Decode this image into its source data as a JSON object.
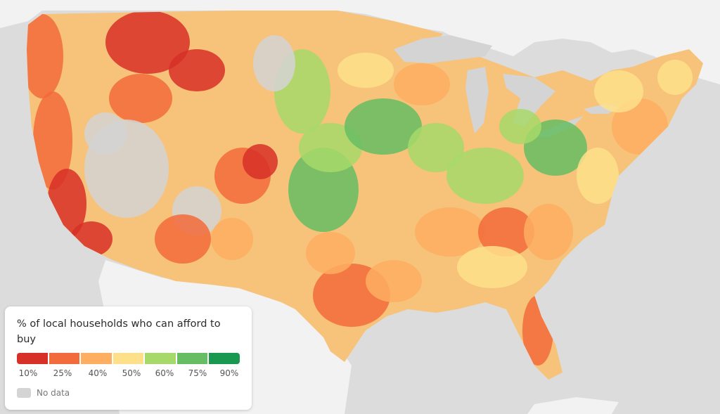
{
  "map": {
    "colors": {
      "background": "#dcdcdc",
      "land_foreign": "#f2f2f2",
      "water": "#d4d4d4",
      "no_data": "#d4d4d4",
      "scale": [
        "#d73027",
        "#f26b3a",
        "#fdae61",
        "#fee08b",
        "#a6d96a",
        "#66bd63",
        "#1a9850"
      ]
    }
  },
  "legend": {
    "title": "% of local households who can afford to buy",
    "ticks": [
      "10%",
      "25%",
      "40%",
      "50%",
      "60%",
      "75%",
      "90%"
    ],
    "no_data_label": "No data"
  }
}
